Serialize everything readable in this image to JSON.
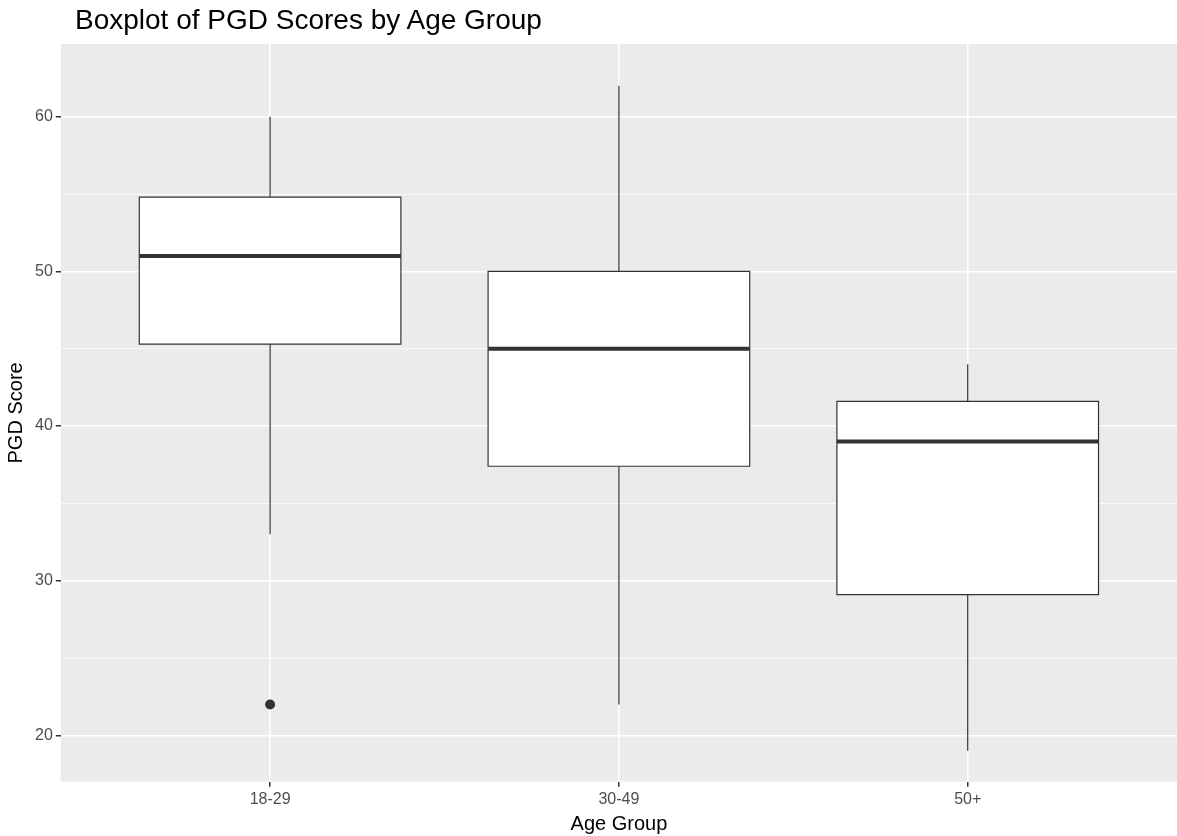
{
  "chart_data": {
    "type": "box",
    "title": "Boxplot of PGD Scores by Age Group",
    "xlabel": "Age Group",
    "ylabel": "PGD Score",
    "categories": [
      "18-29",
      "30-49",
      "50+"
    ],
    "boxes": [
      {
        "low": 33,
        "q1": 45.3,
        "median": 51,
        "q3": 54.8,
        "high": 60,
        "outliers": [
          22
        ]
      },
      {
        "low": 22,
        "q1": 37.4,
        "median": 45,
        "q3": 50,
        "high": 62
      },
      {
        "low": 19,
        "q1": 29.1,
        "median": 39,
        "q3": 41.6,
        "high": 44
      }
    ],
    "color": "#ffffff",
    "ylim": [
      17,
      64.7
    ],
    "yticks": [
      20,
      {
        "value": 25,
        "label": null
      },
      30,
      {
        "value": 35,
        "label": null
      },
      40,
      {
        "value": 45,
        "label": null
      },
      50,
      {
        "value": 55,
        "label": null
      },
      60
    ],
    "grid": true,
    "legend": false
  }
}
